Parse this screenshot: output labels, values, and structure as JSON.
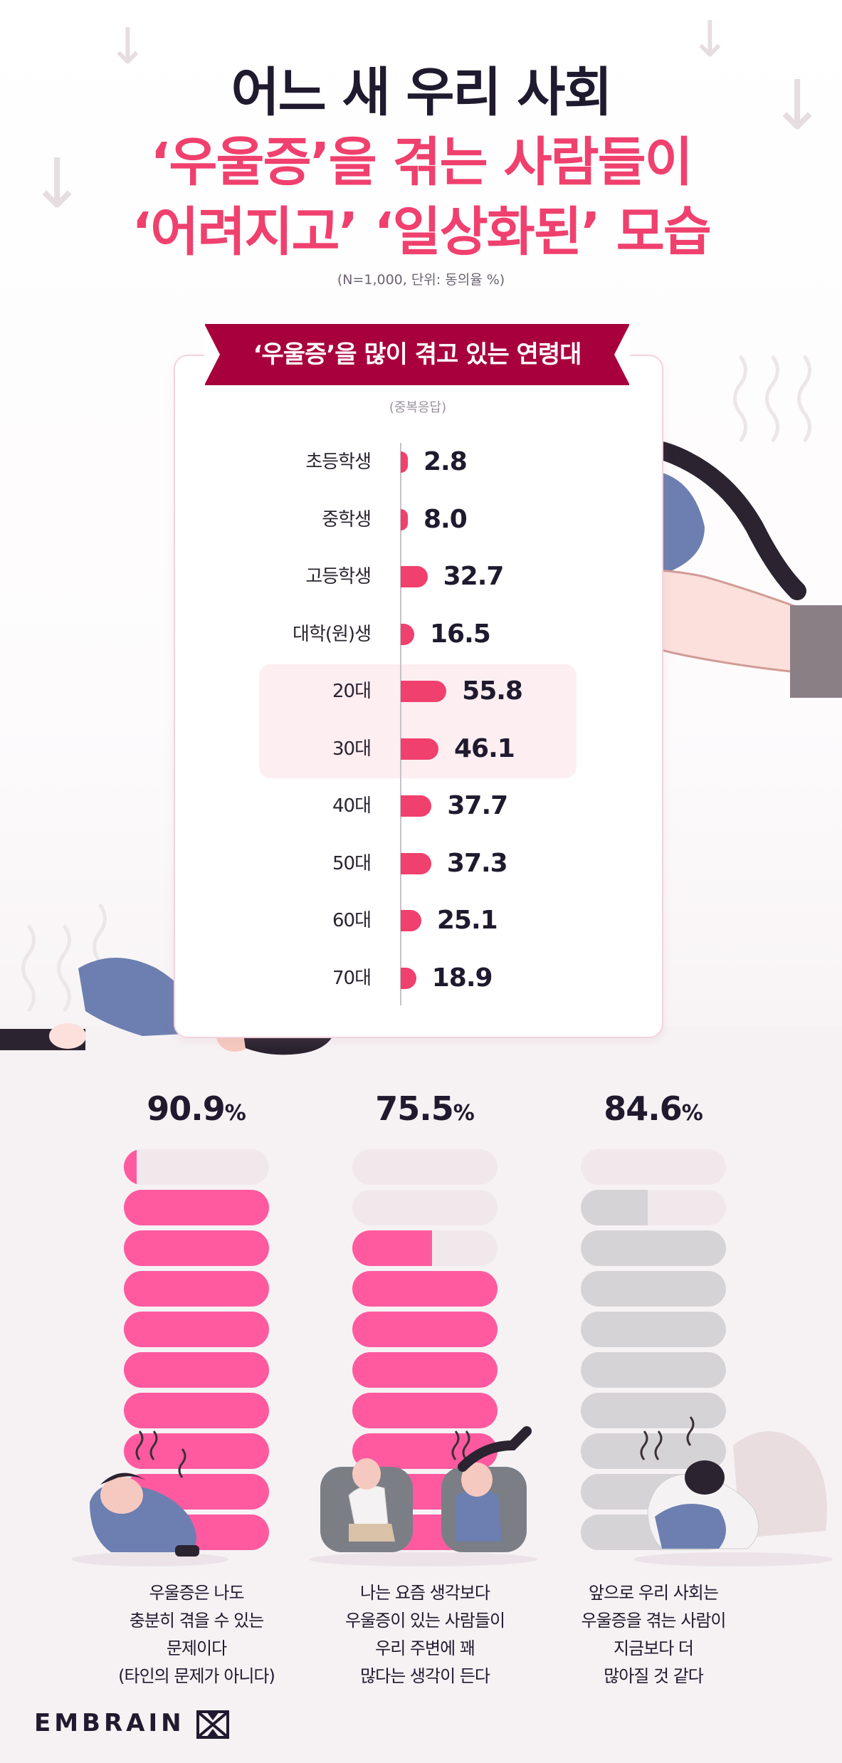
{
  "title": {
    "line1": "어느 새 우리 사회",
    "line2": "‘우울증’을 겪는 사람들이",
    "line3": "‘어려지고’ ‘일상화된’ 모습"
  },
  "note": "(N=1,000, 단위: 동의율 %)",
  "chart_data": [
    {
      "type": "bar",
      "orientation": "horizontal",
      "title": "‘우울증’을 많이 겪고 있는 연령대",
      "subtitle": "(중복응답)",
      "categories": [
        "초등학생",
        "중학생",
        "고등학생",
        "대학(원)생",
        "20대",
        "30대",
        "40대",
        "50대",
        "60대",
        "70대"
      ],
      "values": [
        2.8,
        8.0,
        32.7,
        16.5,
        55.8,
        46.1,
        37.7,
        37.3,
        25.1,
        18.9
      ],
      "value_labels": [
        "2.8",
        "8.0",
        "32.7",
        "16.5",
        "55.8",
        "46.1",
        "37.7",
        "37.3",
        "25.1",
        "18.9"
      ],
      "highlighted": [
        "20대",
        "30대"
      ],
      "accent_color": "#f0406e",
      "highlight_color": "#fdeef2",
      "grid": false
    },
    {
      "type": "bar",
      "style": "stacked-pill-gauge",
      "items": [
        {
          "value": 90.9,
          "value_label": "90.9",
          "unit": "%",
          "statement": [
            "우울증은 나도",
            "충분히 겪을 수 있는",
            "문제이다",
            "(타인의 문제가 아니다)"
          ],
          "fill_color": "#ff5aa0"
        },
        {
          "value": 75.5,
          "value_label": "75.5",
          "unit": "%",
          "statement": [
            "나는 요즘 생각보다",
            "우울증이 있는 사람들이",
            "우리 주변에 꽤",
            "많다는 생각이 든다"
          ],
          "fill_color": "#ff5aa0"
        },
        {
          "value": 84.6,
          "value_label": "84.6",
          "unit": "%",
          "statement": [
            "앞으로 우리 사회는",
            "우울증을 겪는 사람이",
            "지금보다 더",
            "많아질 것 같다"
          ],
          "fill_color": "#d6d3d6"
        }
      ],
      "empty_color": "#f1e8ec"
    }
  ],
  "brand": "EMBRAIN"
}
